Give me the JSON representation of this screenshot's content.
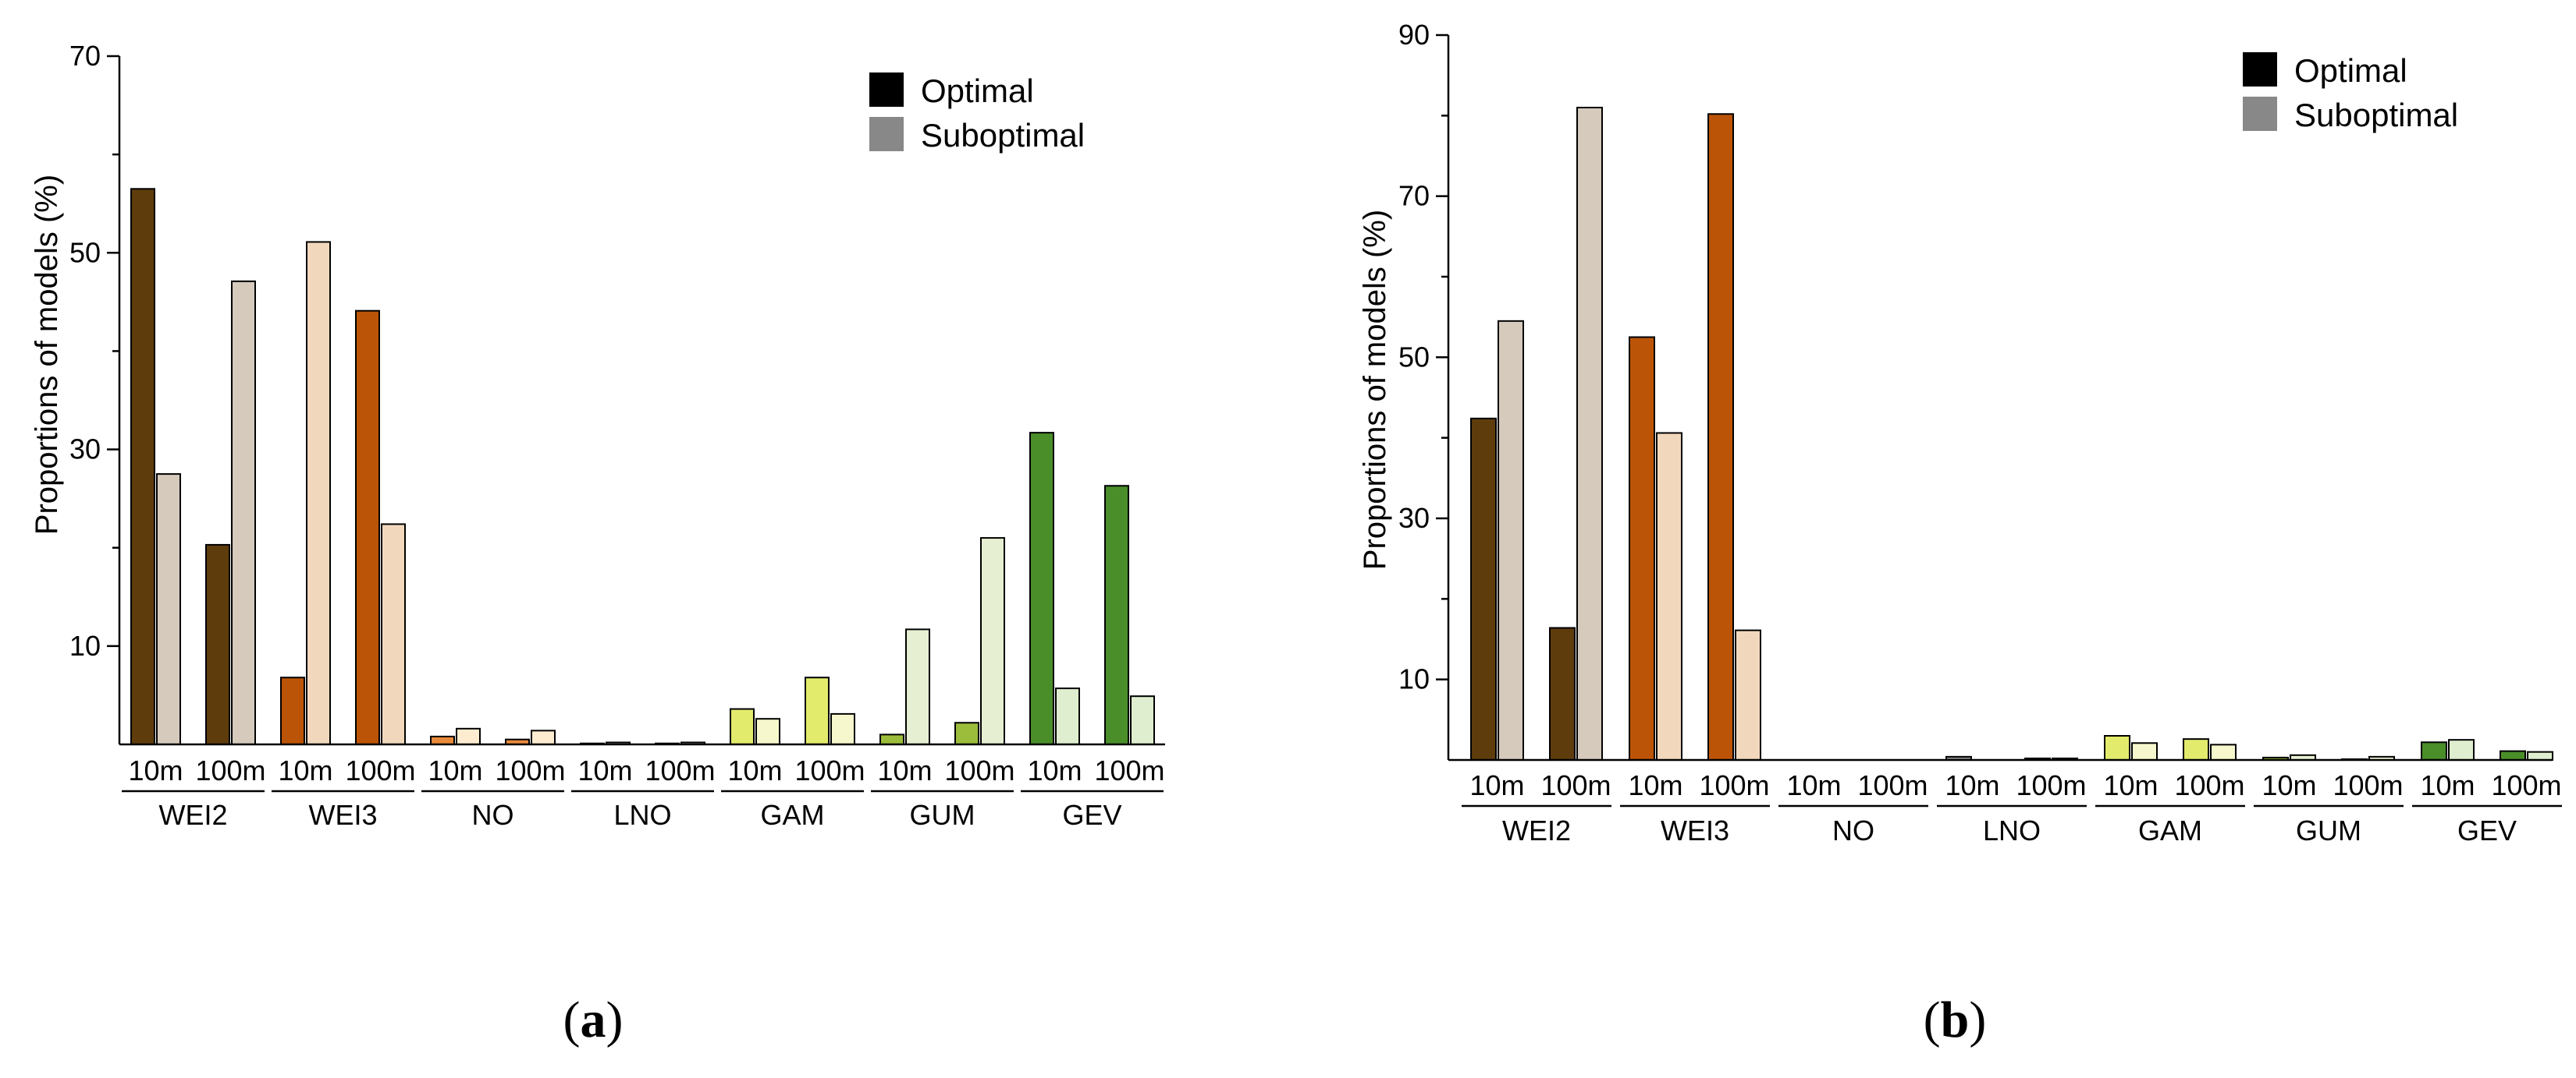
{
  "chart_data": [
    {
      "type": "bar",
      "panel_label": "a",
      "ylabel": "Proportions of models (%)",
      "ylim": [
        0,
        70
      ],
      "yticks": [
        10,
        30,
        50,
        70
      ],
      "groups": [
        "WEI2",
        "WEI3",
        "NO",
        "LNO",
        "GAM",
        "GUM",
        "GEV"
      ],
      "subcategories": [
        "10m",
        "100m"
      ],
      "legend": {
        "position": "top-right",
        "entries": [
          {
            "label": "Optimal",
            "color": "#000000"
          },
          {
            "label": "Suboptimal",
            "color": "#888888"
          }
        ]
      },
      "series": [
        {
          "group": "WEI2",
          "sub": "10m",
          "optimal": 56.5,
          "suboptimal": 27.5
        },
        {
          "group": "WEI2",
          "sub": "100m",
          "optimal": 20.3,
          "suboptimal": 47.1
        },
        {
          "group": "WEI3",
          "sub": "10m",
          "optimal": 6.8,
          "suboptimal": 51.1
        },
        {
          "group": "WEI3",
          "sub": "100m",
          "optimal": 44.1,
          "suboptimal": 22.4
        },
        {
          "group": "NO",
          "sub": "10m",
          "optimal": 0.8,
          "suboptimal": 1.6
        },
        {
          "group": "NO",
          "sub": "100m",
          "optimal": 0.5,
          "suboptimal": 1.4
        },
        {
          "group": "LNO",
          "sub": "10m",
          "optimal": 0.1,
          "suboptimal": 0.2
        },
        {
          "group": "LNO",
          "sub": "100m",
          "optimal": 0.1,
          "suboptimal": 0.2
        },
        {
          "group": "GAM",
          "sub": "10m",
          "optimal": 3.6,
          "suboptimal": 2.6
        },
        {
          "group": "GAM",
          "sub": "100m",
          "optimal": 6.8,
          "suboptimal": 3.1
        },
        {
          "group": "GUM",
          "sub": "10m",
          "optimal": 1.0,
          "suboptimal": 11.7
        },
        {
          "group": "GUM",
          "sub": "100m",
          "optimal": 2.2,
          "suboptimal": 21.0
        },
        {
          "group": "GEV",
          "sub": "10m",
          "optimal": 31.7,
          "suboptimal": 5.7
        },
        {
          "group": "GEV",
          "sub": "100m",
          "optimal": 26.3,
          "suboptimal": 4.9
        }
      ]
    },
    {
      "type": "bar",
      "panel_label": "b",
      "ylabel": "Proportions of models (%)",
      "ylim": [
        0,
        90
      ],
      "yticks": [
        10,
        30,
        50,
        70,
        90
      ],
      "groups": [
        "WEI2",
        "WEI3",
        "NO",
        "LNO",
        "GAM",
        "GUM",
        "GEV"
      ],
      "subcategories": [
        "10m",
        "100m"
      ],
      "legend": {
        "position": "top-right",
        "entries": [
          {
            "label": "Optimal",
            "color": "#000000"
          },
          {
            "label": "Suboptimal",
            "color": "#888888"
          }
        ]
      },
      "series": [
        {
          "group": "WEI2",
          "sub": "10m",
          "optimal": 42.4,
          "suboptimal": 54.5
        },
        {
          "group": "WEI2",
          "sub": "100m",
          "optimal": 16.4,
          "suboptimal": 81.0
        },
        {
          "group": "WEI3",
          "sub": "10m",
          "optimal": 52.5,
          "suboptimal": 40.6
        },
        {
          "group": "WEI3",
          "sub": "100m",
          "optimal": 80.2,
          "suboptimal": 16.1
        },
        {
          "group": "NO",
          "sub": "10m",
          "optimal": 0,
          "suboptimal": 0
        },
        {
          "group": "NO",
          "sub": "100m",
          "optimal": 0,
          "suboptimal": 0
        },
        {
          "group": "LNO",
          "sub": "10m",
          "optimal": 0.4,
          "suboptimal": 0
        },
        {
          "group": "LNO",
          "sub": "100m",
          "optimal": 0.2,
          "suboptimal": 0.2
        },
        {
          "group": "GAM",
          "sub": "10m",
          "optimal": 3.0,
          "suboptimal": 2.1
        },
        {
          "group": "GAM",
          "sub": "100m",
          "optimal": 2.6,
          "suboptimal": 1.9
        },
        {
          "group": "GUM",
          "sub": "10m",
          "optimal": 0.3,
          "suboptimal": 0.6
        },
        {
          "group": "GUM",
          "sub": "100m",
          "optimal": 0.1,
          "suboptimal": 0.4
        },
        {
          "group": "GEV",
          "sub": "10m",
          "optimal": 2.2,
          "suboptimal": 2.5
        },
        {
          "group": "GEV",
          "sub": "100m",
          "optimal": 1.1,
          "suboptimal": 1.0
        }
      ]
    }
  ],
  "colors": {
    "WEI2": {
      "optimal": "#5e3c0c",
      "suboptimal": "#d5cabc"
    },
    "WEI3": {
      "optimal": "#bb5407",
      "suboptimal": "#f1d8bd"
    },
    "NO": {
      "optimal": "#e88a3b",
      "suboptimal": "#fdeccf"
    },
    "LNO": {
      "optimal": "#8a8a8a",
      "suboptimal": "#cfcfcf"
    },
    "GAM": {
      "optimal": "#e2eb6c",
      "suboptimal": "#f6f7cc"
    },
    "GUM": {
      "optimal": "#9cbc3c",
      "suboptimal": "#e6efd2"
    },
    "GEV": {
      "optimal": "#4a8e2a",
      "suboptimal": "#dfeecf"
    }
  }
}
